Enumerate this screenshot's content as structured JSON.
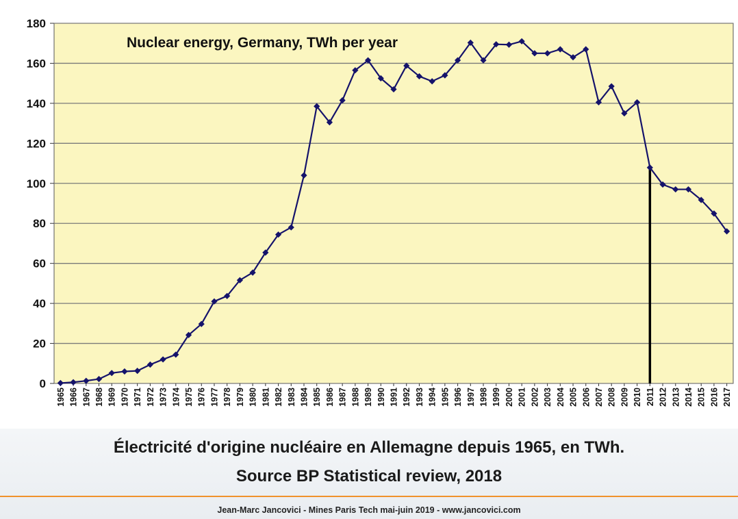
{
  "chart_data": {
    "type": "line",
    "title": "Nuclear energy, Germany, TWh per year",
    "xlabel": "",
    "ylabel": "",
    "ylim": [
      0,
      180
    ],
    "yticks": [
      0,
      20,
      40,
      60,
      80,
      100,
      120,
      140,
      160,
      180
    ],
    "grid": "horizontal",
    "x": [
      "1965",
      "1966",
      "1967",
      "1968",
      "1969",
      "1970",
      "1971",
      "1972",
      "1973",
      "1974",
      "1975",
      "1976",
      "1977",
      "1978",
      "1979",
      "1980",
      "1981",
      "1982",
      "1983",
      "1984",
      "1985",
      "1986",
      "1987",
      "1988",
      "1989",
      "1990",
      "1991",
      "1992",
      "1993",
      "1994",
      "1995",
      "1996",
      "1997",
      "1998",
      "1999",
      "2000",
      "2001",
      "2002",
      "2003",
      "2004",
      "2005",
      "2006",
      "2007",
      "2008",
      "2009",
      "2010",
      "2011",
      "2012",
      "2013",
      "2014",
      "2015",
      "2016",
      "2017"
    ],
    "series": [
      {
        "values": [
          0.2,
          0.6,
          1.3,
          2.2,
          5.2,
          6.0,
          6.3,
          9.4,
          12.0,
          14.4,
          24.2,
          29.7,
          41.0,
          43.7,
          51.6,
          55.4,
          65.4,
          74.4,
          78.0,
          104.0,
          138.5,
          130.5,
          141.5,
          156.5,
          161.5,
          152.5,
          147.0,
          158.8,
          153.5,
          151.0,
          154.0,
          161.5,
          170.3,
          161.5,
          169.5,
          169.3,
          171.0,
          165.0,
          165.0,
          167.0,
          163.0,
          167.0,
          140.5,
          148.5,
          135.0,
          140.5,
          107.9,
          99.4,
          97.0,
          97.0,
          91.7,
          84.9,
          76.0
        ]
      }
    ],
    "highlight_year": "2011",
    "colors": {
      "plot_background": "#fbf6c0",
      "line": "#15136b",
      "gridline": "#7a7a7a",
      "highlight": "#000000"
    }
  },
  "caption": {
    "line1": "Électricité d'origine nucléaire en Allemagne depuis 1965, en TWh.",
    "line2": "Source BP Statistical review, 2018"
  },
  "footer": "Jean-Marc Jancovici - Mines Paris Tech mai-juin 2019 - www.jancovici.com",
  "colors": {
    "caption_background": "#eef1f4",
    "accent_rule": "#f0922b"
  }
}
